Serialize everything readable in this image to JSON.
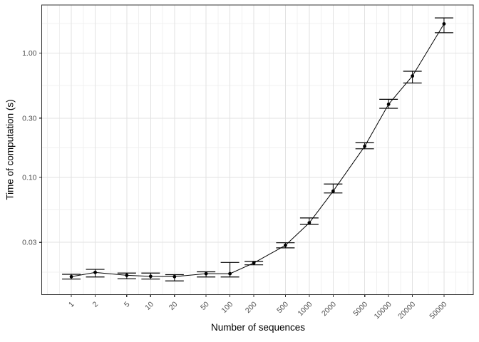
{
  "chart_data": {
    "type": "line",
    "title": "",
    "xlabel": "Number of sequences",
    "ylabel": "Time of computation (s)",
    "x_scale": "log10",
    "y_scale": "log10",
    "xlim": [
      0.423,
      117000
    ],
    "ylim": [
      0.0114,
      2.44
    ],
    "x_ticks": [
      1,
      2,
      5,
      10,
      20,
      50,
      100,
      200,
      500,
      1000,
      2000,
      5000,
      10000,
      20000,
      50000
    ],
    "x_tick_labels": [
      "1",
      "2",
      "5",
      "10",
      "20",
      "50",
      "100",
      "200",
      "500",
      "1000",
      "2000",
      "5000",
      "10000",
      "20000",
      "50000"
    ],
    "y_ticks": [
      0.03,
      0.1,
      0.3,
      1
    ],
    "y_tick_labels": [
      "0.03",
      "0.10",
      "0.30",
      "1.00"
    ],
    "x_minor_gridlines": [
      0.5,
      0.707,
      1.414,
      3.162,
      7.071,
      14.14,
      31.62,
      70.71,
      141.4,
      316.2,
      707.1,
      1414,
      3162,
      7071,
      14142,
      31623,
      70711,
      100000
    ],
    "y_minor_gridlines": [
      0.0173,
      0.0548,
      0.173,
      0.548,
      1.732
    ],
    "grid": "major and minor gridlines on white panel, dark panel border (theme_bw style)",
    "legend": "none",
    "x": [
      1,
      2,
      5,
      10,
      20,
      50,
      100,
      200,
      500,
      1000,
      2000,
      5000,
      10000,
      20000,
      50000
    ],
    "y": [
      0.0159,
      0.0172,
      0.0163,
      0.016,
      0.0159,
      0.0168,
      0.0168,
      0.0205,
      0.0284,
      0.0431,
      0.0775,
      0.178,
      0.388,
      0.655,
      1.72
    ],
    "ymin": [
      0.0152,
      0.0158,
      0.0153,
      0.0152,
      0.0147,
      0.0158,
      0.0158,
      0.0198,
      0.0271,
      0.0419,
      0.075,
      0.17,
      0.36,
      0.575,
      1.46
    ],
    "ymax": [
      0.0166,
      0.0182,
      0.017,
      0.017,
      0.0165,
      0.0174,
      0.0207,
      0.0211,
      0.0298,
      0.0472,
      0.0885,
      0.19,
      0.425,
      0.715,
      1.92
    ]
  },
  "colors": {
    "outer_background": "#ffffff",
    "panel_background": "#ffffff",
    "grid_major": "#e2e2e2",
    "grid_minor": "#f0f0f0",
    "panel_border": "#333333",
    "tick_mark": "#333333",
    "tick_label": "#4d4d4d",
    "axis_title": "#000000",
    "series": "#000000"
  }
}
